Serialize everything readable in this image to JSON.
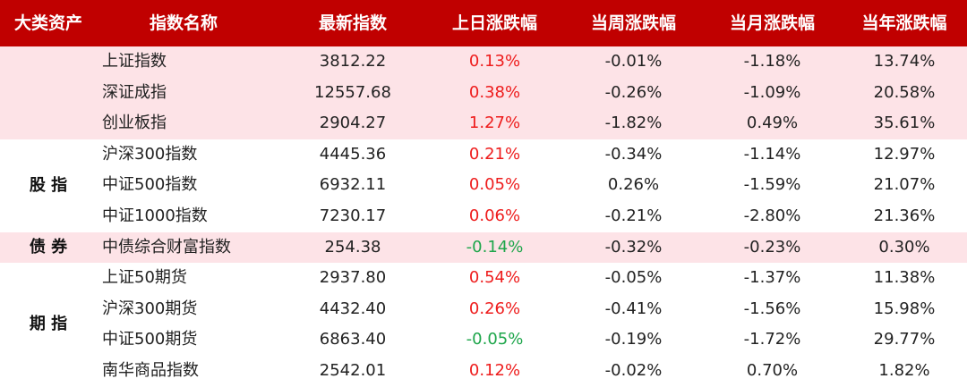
{
  "colors": {
    "header_bg": "#c00000",
    "band_pink": "#fde3e7",
    "band_white": "#ffffff",
    "up": "#ee1c1c",
    "down": "#1ea64b"
  },
  "columns": [
    "大类资产",
    "指数名称",
    "最新指数",
    "上日涨跌幅",
    "当周涨跌幅",
    "当月涨跌幅",
    "当年涨跌幅"
  ],
  "groups": [
    {
      "label": "",
      "band": "pink",
      "row_start": 0,
      "row_count": 3
    },
    {
      "label": "股 指",
      "band": "white",
      "row_start": 3,
      "row_count": 3
    },
    {
      "label": "债 券",
      "band": "pink",
      "row_start": 6,
      "row_count": 1
    },
    {
      "label": "期 指",
      "band": "white",
      "row_start": 7,
      "row_count": 4
    }
  ],
  "rows": [
    {
      "name": "上证指数",
      "latest": "3812.22",
      "day": "0.13%",
      "day_dir": "up",
      "week": "-0.01%",
      "month": "-1.18%",
      "year": "13.74%"
    },
    {
      "name": "深证成指",
      "latest": "12557.68",
      "day": "0.38%",
      "day_dir": "up",
      "week": "-0.26%",
      "month": "-1.09%",
      "year": "20.58%"
    },
    {
      "name": "创业板指",
      "latest": "2904.27",
      "day": "1.27%",
      "day_dir": "up",
      "week": "-1.82%",
      "month": "0.49%",
      "year": "35.61%"
    },
    {
      "name": "沪深300指数",
      "latest": "4445.36",
      "day": "0.21%",
      "day_dir": "up",
      "week": "-0.34%",
      "month": "-1.14%",
      "year": "12.97%"
    },
    {
      "name": "中证500指数",
      "latest": "6932.11",
      "day": "0.05%",
      "day_dir": "up",
      "week": "0.26%",
      "month": "-1.59%",
      "year": "21.07%"
    },
    {
      "name": "中证1000指数",
      "latest": "7230.17",
      "day": "0.06%",
      "day_dir": "up",
      "week": "-0.21%",
      "month": "-2.80%",
      "year": "21.36%"
    },
    {
      "name": "中债综合财富指数",
      "latest": "254.38",
      "day": "-0.14%",
      "day_dir": "down",
      "week": "-0.32%",
      "month": "-0.23%",
      "year": "0.30%"
    },
    {
      "name": "上证50期货",
      "latest": "2937.80",
      "day": "0.54%",
      "day_dir": "up",
      "week": "-0.05%",
      "month": "-1.37%",
      "year": "11.38%"
    },
    {
      "name": "沪深300期货",
      "latest": "4432.40",
      "day": "0.26%",
      "day_dir": "up",
      "week": "-0.41%",
      "month": "-1.56%",
      "year": "15.98%"
    },
    {
      "name": "中证500期货",
      "latest": "6863.40",
      "day": "-0.05%",
      "day_dir": "down",
      "week": "-0.19%",
      "month": "-1.72%",
      "year": "29.77%"
    },
    {
      "name": "南华商品指数",
      "latest": "2542.01",
      "day": "0.12%",
      "day_dir": "up",
      "week": "-0.02%",
      "month": "0.70%",
      "year": "1.82%"
    }
  ]
}
